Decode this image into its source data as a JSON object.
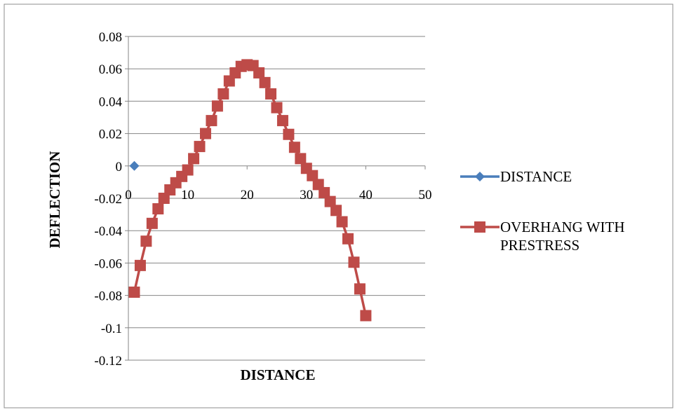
{
  "chart_data": {
    "type": "line",
    "title": "",
    "xlabel": "DISTANCE",
    "ylabel": "DEFLECTION",
    "xlim": [
      0,
      50
    ],
    "ylim": [
      -0.12,
      0.08
    ],
    "x_ticks": [
      "0",
      "10",
      "20",
      "30",
      "40",
      "50"
    ],
    "y_ticks": [
      "0.08",
      "0.06",
      "0.04",
      "0.02",
      "0",
      "-0.02",
      "-0.04",
      "-0.06",
      "-0.08",
      "-0.1",
      "-0.12"
    ],
    "grid": "horizontal",
    "legend_position": "right",
    "series": [
      {
        "name": "DISTANCE",
        "color": "#4a7ebb",
        "marker": "diamond",
        "x": [
          1
        ],
        "y": [
          0
        ]
      },
      {
        "name": "OVERHANG WITH PRESTRESS",
        "color": "#be4b48",
        "marker": "square",
        "x": [
          1,
          2,
          3,
          4,
          5,
          6,
          7,
          8,
          9,
          10,
          11,
          12,
          13,
          14,
          15,
          16,
          17,
          18,
          19,
          20,
          21,
          22,
          23,
          24,
          25,
          26,
          27,
          28,
          29,
          30,
          31,
          32,
          33,
          34,
          35,
          36,
          37,
          38,
          39,
          40
        ],
        "y": [
          -0.078,
          -0.0615,
          -0.0465,
          -0.0355,
          -0.0265,
          -0.02,
          -0.0148,
          -0.0104,
          -0.0065,
          -0.0025,
          0.0045,
          0.012,
          0.02,
          0.028,
          0.037,
          0.0445,
          0.0525,
          0.0575,
          0.0615,
          0.0625,
          0.062,
          0.0575,
          0.0515,
          0.0445,
          0.036,
          0.028,
          0.0195,
          0.0115,
          0.0045,
          -0.0015,
          -0.006,
          -0.0115,
          -0.0165,
          -0.022,
          -0.0275,
          -0.0345,
          -0.045,
          -0.0595,
          -0.076,
          -0.0925
        ]
      }
    ]
  }
}
